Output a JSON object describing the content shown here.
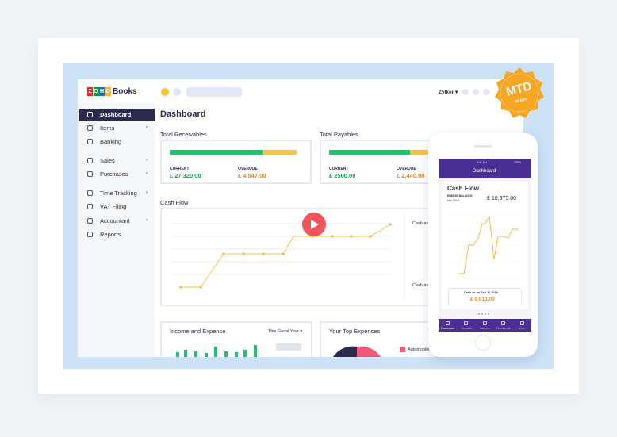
{
  "header": {
    "logo_letters": [
      "Z",
      "O",
      "H",
      "O"
    ],
    "product": "Books",
    "org": "Zylker ▾"
  },
  "sidebar": {
    "items": [
      "Dashboard",
      "Items",
      "Banking",
      "Sales",
      "Purchases",
      "Time Tracking",
      "VAT Filing",
      "Accountant",
      "Reports"
    ]
  },
  "page_title": "Dashboard",
  "receivables": {
    "title": "Total Receivables",
    "current_label": "CURRENT",
    "current_value": "£ 27,320.00",
    "overdue_label": "OVERDUE",
    "overdue_value": "£ 4,847.00"
  },
  "payables": {
    "title": "Total Payables",
    "current_label": "CURRENT",
    "current_value": "£ 2500.00",
    "overdue_label": "OVERDUE",
    "overdue_value": "£ 2,440.00"
  },
  "cash_flow": {
    "title": "Cash Flow",
    "legend_top": "Cash as o",
    "legend_bottom": "Cash as o"
  },
  "income_expense": {
    "title": "Income and Expense",
    "period": "This Fiscal Year ▾"
  },
  "top_expenses": {
    "title": "Your Top Expenses",
    "legend": "Automobile E",
    "cut_text": "T"
  },
  "phone": {
    "time": "9:41 AM",
    "battery": "100%",
    "header_title": "Dashboard",
    "card_title": "Cash Flow",
    "ending_label": "ENDING BALANCE",
    "ending_date": "Mar 2019",
    "ending_value": "£ 10,975.00",
    "cash_on_label": "Cash as on Feb 11 2019",
    "cash_on_value": "£ 9,013.00",
    "tabs": [
      "Dashboard",
      "Contacts",
      "Invoices",
      "Timesheets",
      "More"
    ]
  },
  "badge": {
    "title": "MTD",
    "subtitle": "READY"
  }
}
